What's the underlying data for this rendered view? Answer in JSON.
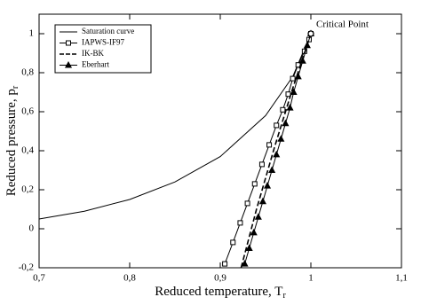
{
  "chart_data": {
    "type": "line",
    "xlabel": "Reduced temperature, T",
    "xlabel_sub": "r",
    "ylabel": "Reduced pressure, p",
    "ylabel_sub": "r",
    "xlim": [
      0.7,
      1.1
    ],
    "xticks": [
      {
        "value": 0.7,
        "label": "0,7"
      },
      {
        "value": 0.8,
        "label": "0,8"
      },
      {
        "value": 0.9,
        "label": "0,9"
      },
      1,
      {
        "value": 1.1,
        "label": "1,1"
      }
    ],
    "ylim": [
      -0.2,
      1.1
    ],
    "yticks": [
      {
        "value": -0.2,
        "label": "-0,2"
      },
      0,
      {
        "value": 0.2,
        "label": "0,2"
      },
      {
        "value": 0.4,
        "label": "0,4"
      },
      {
        "value": 0.6,
        "label": "0,6"
      },
      {
        "value": 0.8,
        "label": "0,8"
      },
      1
    ],
    "legend": "upper left",
    "series": [
      {
        "name": "Saturation curve",
        "color": "#000000",
        "dash": "solid",
        "marker": "none",
        "x": [
          0.7,
          0.75,
          0.8,
          0.85,
          0.9,
          0.95,
          0.98,
          1
        ],
        "values": [
          0.05,
          0.09,
          0.15,
          0.24,
          0.37,
          0.58,
          0.78,
          1
        ]
      },
      {
        "name": "IAPWS-IF97",
        "color": "#000000",
        "dash": "solid",
        "marker": "square",
        "x": [
          0.905,
          0.914,
          0.922,
          0.93,
          0.938,
          0.946,
          0.954,
          0.962,
          0.969,
          0.975,
          0.98,
          0.986,
          0.993,
          0.998,
          1
        ],
        "values": [
          -0.18,
          -0.07,
          0.03,
          0.13,
          0.23,
          0.33,
          0.43,
          0.53,
          0.61,
          0.69,
          0.77,
          0.84,
          0.91,
          0.97,
          1
        ]
      },
      {
        "name": "IK-BK",
        "color": "#000000",
        "dash": "dashed",
        "marker": "none",
        "x": [
          0.923,
          0.94,
          0.96,
          0.98,
          1
        ],
        "values": [
          -0.2,
          0.1,
          0.42,
          0.72,
          1
        ]
      },
      {
        "name": "Eberhart",
        "color": "#000000",
        "dash": "solid",
        "marker": "triangle",
        "x": [
          0.927,
          0.932,
          0.937,
          0.942,
          0.947,
          0.952,
          0.957,
          0.962,
          0.967,
          0.972,
          0.977,
          0.981,
          0.986,
          0.991,
          0.996,
          1
        ],
        "values": [
          -0.18,
          -0.1,
          -0.02,
          0.06,
          0.14,
          0.22,
          0.3,
          0.38,
          0.46,
          0.54,
          0.62,
          0.7,
          0.78,
          0.86,
          0.94,
          1
        ]
      }
    ],
    "critical_point": {
      "x": 1,
      "y": 1,
      "label": "Critical Point"
    }
  }
}
